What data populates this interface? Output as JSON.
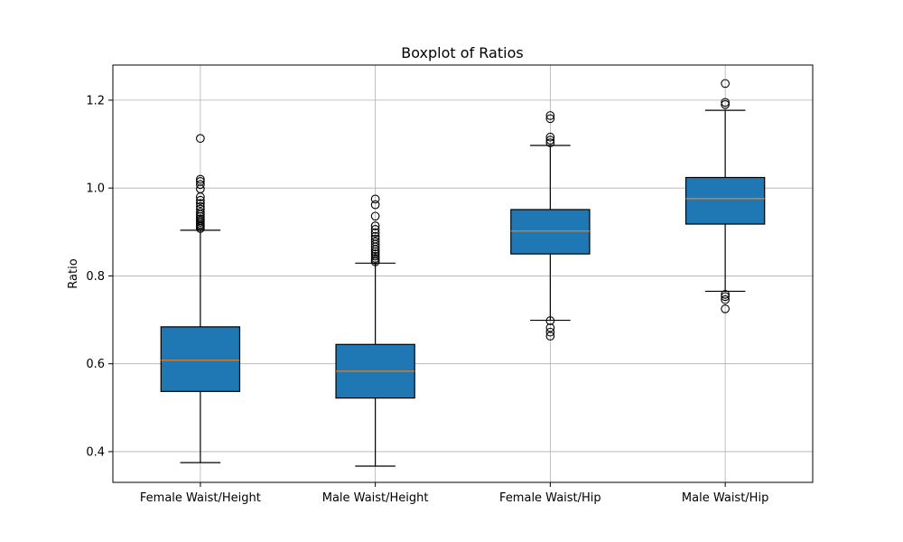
{
  "chart_data": {
    "type": "boxplot",
    "title": "Boxplot of Ratios",
    "xlabel": "",
    "ylabel": "Ratio",
    "ylim": [
      0.33,
      1.28
    ],
    "yticks": [
      0.4,
      0.6,
      0.8,
      1.0,
      1.2
    ],
    "ytick_labels": [
      "0.4",
      "0.6",
      "0.8",
      "1.0",
      "1.2"
    ],
    "grid": true,
    "colors": {
      "box_fill": "#1f77b4",
      "median": "#ff7f0e",
      "grid": "#b0b0b0",
      "line": "#000000"
    },
    "categories": [
      "Female Waist/Height",
      "Male Waist/Height",
      "Female Waist/Hip",
      "Male Waist/Hip"
    ],
    "boxes": [
      {
        "category": "Female Waist/Height",
        "whisker_low": 0.375,
        "q1": 0.537,
        "median": 0.608,
        "q3": 0.684,
        "whisker_high": 0.904,
        "outliers": [
          0.908,
          0.912,
          0.915,
          0.918,
          0.922,
          0.926,
          0.93,
          0.935,
          0.94,
          0.945,
          0.952,
          0.958,
          0.965,
          0.972,
          0.98,
          0.998,
          1.008,
          1.015,
          1.02,
          1.113
        ]
      },
      {
        "category": "Male Waist/Height",
        "whisker_low": 0.367,
        "q1": 0.522,
        "median": 0.583,
        "q3": 0.644,
        "whisker_high": 0.829,
        "outliers": [
          0.832,
          0.836,
          0.84,
          0.845,
          0.85,
          0.855,
          0.86,
          0.866,
          0.872,
          0.878,
          0.884,
          0.89,
          0.898,
          0.906,
          0.914,
          0.936,
          0.962,
          0.975
        ]
      },
      {
        "category": "Female Waist/Hip",
        "whisker_low": 0.699,
        "q1": 0.85,
        "median": 0.902,
        "q3": 0.951,
        "whisker_high": 1.097,
        "outliers": [
          0.663,
          0.672,
          0.682,
          0.698,
          1.103,
          1.109,
          1.116,
          1.158,
          1.165
        ]
      },
      {
        "category": "Male Waist/Hip",
        "whisker_low": 0.765,
        "q1": 0.918,
        "median": 0.976,
        "q3": 1.024,
        "whisker_high": 1.177,
        "outliers": [
          0.725,
          0.746,
          0.753,
          0.758,
          1.19,
          1.195,
          1.238
        ]
      }
    ]
  }
}
